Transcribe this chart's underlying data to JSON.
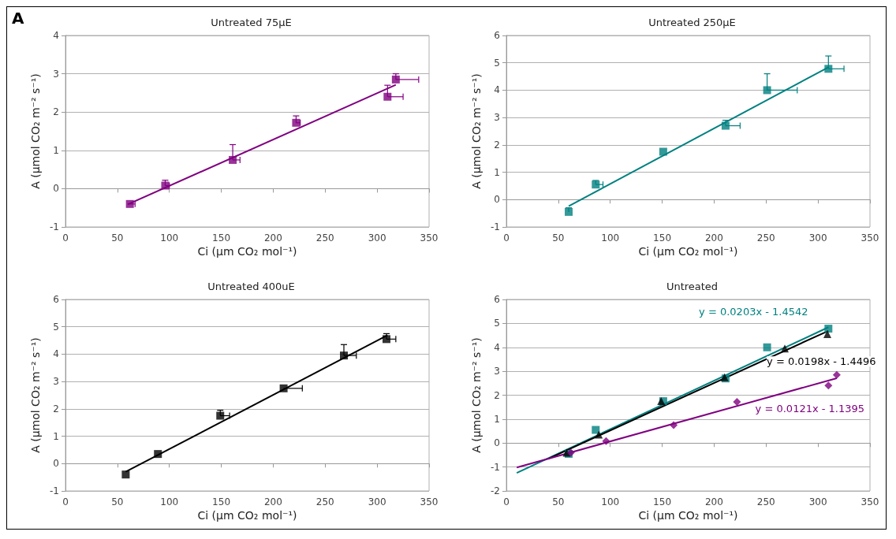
{
  "chart_data": [
    {
      "type": "scatter",
      "title": "Untreated 75µE",
      "xlabel": "Ci (µm CO₂ mol⁻¹)",
      "ylabel": "A (µmol CO₂ m⁻² s⁻¹)",
      "annotations": [
        "A"
      ],
      "xlim": [
        0,
        350
      ],
      "ylim": [
        -1,
        4
      ],
      "xticks": [
        0,
        50,
        100,
        150,
        200,
        250,
        300,
        350
      ],
      "yticks": [
        -1,
        0,
        1,
        2,
        3,
        4
      ],
      "grid": "y",
      "marker": "square",
      "series": [
        {
          "type": "scatter",
          "color": "#800080",
          "x": [
            62,
            96,
            161,
            222,
            310,
            318
          ],
          "values": [
            -0.4,
            0.08,
            0.75,
            1.72,
            2.4,
            2.85
          ],
          "errors": [
            null,
            [
              0.08,
              0.22
            ],
            [
              0.75,
              1.15
            ],
            [
              1.72,
              1.9
            ],
            [
              2.4,
              2.7
            ],
            [
              2.85,
              3.0
            ]
          ],
          "xerrors": [
            [
              62,
              67
            ],
            [
              96,
              100
            ],
            [
              161,
              168
            ],
            [
              222,
              226
            ],
            [
              310,
              325
            ],
            [
              318,
              340
            ]
          ]
        },
        {
          "type": "line",
          "color": "#800080",
          "marker": "none",
          "line_style": "solid",
          "x": [
            60,
            318
          ],
          "values": [
            -0.41,
            2.71
          ]
        }
      ]
    },
    {
      "type": "scatter",
      "title": "Untreated 250µE",
      "xlabel": "Ci (µm CO₂ mol⁻¹)",
      "ylabel": "A (µmol CO₂ m⁻² s⁻¹)",
      "xlim": [
        0,
        350
      ],
      "ylim": [
        -1,
        6
      ],
      "xticks": [
        0,
        50,
        100,
        150,
        200,
        250,
        300,
        350
      ],
      "yticks": [
        -1,
        0,
        1,
        2,
        3,
        4,
        5,
        6
      ],
      "grid": "y",
      "marker": "square",
      "series": [
        {
          "type": "scatter",
          "color": "#008080",
          "x": [
            60,
            86,
            151,
            211,
            251,
            310
          ],
          "values": [
            -0.45,
            0.55,
            1.75,
            2.7,
            4.0,
            4.78
          ],
          "errors": [
            [
              -0.45,
              -0.3
            ],
            [
              0.55,
              0.7
            ],
            null,
            [
              2.7,
              2.9
            ],
            [
              4.0,
              4.6
            ],
            [
              4.78,
              5.25
            ]
          ],
          "xerrors": [
            null,
            [
              86,
              93
            ],
            null,
            [
              211,
              225
            ],
            [
              251,
              280
            ],
            [
              310,
              325
            ]
          ]
        },
        {
          "type": "line",
          "color": "#008080",
          "marker": "none",
          "line_style": "solid",
          "x": [
            60,
            310
          ],
          "values": [
            -0.24,
            4.84
          ]
        }
      ]
    },
    {
      "type": "scatter",
      "title": "Untreated 400uE",
      "xlabel": "Ci (µm CO₂ mol⁻¹)",
      "ylabel": "A (µmol CO₂ m⁻² s⁻¹)",
      "xlim": [
        0,
        350
      ],
      "ylim": [
        -1,
        6
      ],
      "xticks": [
        0,
        50,
        100,
        150,
        200,
        250,
        300,
        350
      ],
      "yticks": [
        -1,
        0,
        1,
        2,
        3,
        4,
        5,
        6
      ],
      "grid": "y",
      "marker": "square",
      "series": [
        {
          "type": "scatter",
          "color": "#000000",
          "x": [
            58,
            89,
            149,
            210,
            268,
            309
          ],
          "values": [
            -0.4,
            0.35,
            1.75,
            2.75,
            3.95,
            4.55
          ],
          "errors": [
            null,
            null,
            [
              1.75,
              1.95
            ],
            null,
            [
              3.95,
              4.35
            ],
            [
              4.55,
              4.75
            ]
          ],
          "xerrors": [
            null,
            null,
            [
              149,
              158
            ],
            [
              210,
              228
            ],
            [
              268,
              280
            ],
            [
              309,
              318
            ]
          ]
        },
        {
          "type": "line",
          "color": "#000000",
          "marker": "none",
          "line_style": "solid",
          "x": [
            58,
            310
          ],
          "values": [
            -0.3,
            4.69
          ]
        }
      ]
    },
    {
      "type": "scatter",
      "title": "Untreated",
      "xlabel": "Ci (µm CO₂ mol⁻¹)",
      "ylabel": "A (µmol CO₂ m⁻² s⁻¹)",
      "xlim": [
        0,
        350
      ],
      "ylim": [
        -2,
        6
      ],
      "xticks": [
        0,
        50,
        100,
        150,
        200,
        250,
        300,
        350
      ],
      "yticks": [
        -2,
        -1,
        0,
        1,
        2,
        3,
        4,
        5,
        6
      ],
      "grid": "y",
      "annotations": [
        "y = 0.0203x - 1.4542",
        "y = 0.0198x - 1.4496",
        "y = 0.0121x - 1.1395"
      ],
      "series": [
        {
          "type": "scatter",
          "color": "#008080",
          "marker": "square",
          "x": [
            60,
            86,
            151,
            211,
            251,
            310
          ],
          "values": [
            -0.45,
            0.55,
            1.75,
            2.7,
            4.0,
            4.78
          ]
        },
        {
          "type": "scatter",
          "color": "#000000",
          "marker": "triangle",
          "x": [
            58,
            89,
            149,
            210,
            268,
            309
          ],
          "values": [
            -0.4,
            0.35,
            1.75,
            2.75,
            3.95,
            4.55
          ]
        },
        {
          "type": "scatter",
          "color": "#800080",
          "marker": "diamond",
          "x": [
            62,
            96,
            161,
            222,
            310,
            318
          ],
          "values": [
            -0.4,
            0.08,
            0.75,
            1.72,
            2.4,
            2.85
          ]
        },
        {
          "type": "line",
          "color": "#008080",
          "marker": "none",
          "line_style": "solid",
          "x": [
            10,
            310
          ],
          "values": [
            -1.25,
            4.84
          ]
        },
        {
          "type": "line",
          "color": "#000000",
          "marker": "none",
          "line_style": "solid",
          "x": [
            40,
            310
          ],
          "values": [
            -0.66,
            4.69
          ]
        },
        {
          "type": "line",
          "color": "#800080",
          "marker": "none",
          "line_style": "solid",
          "x": [
            10,
            318
          ],
          "values": [
            -1.02,
            2.71
          ]
        }
      ]
    }
  ]
}
